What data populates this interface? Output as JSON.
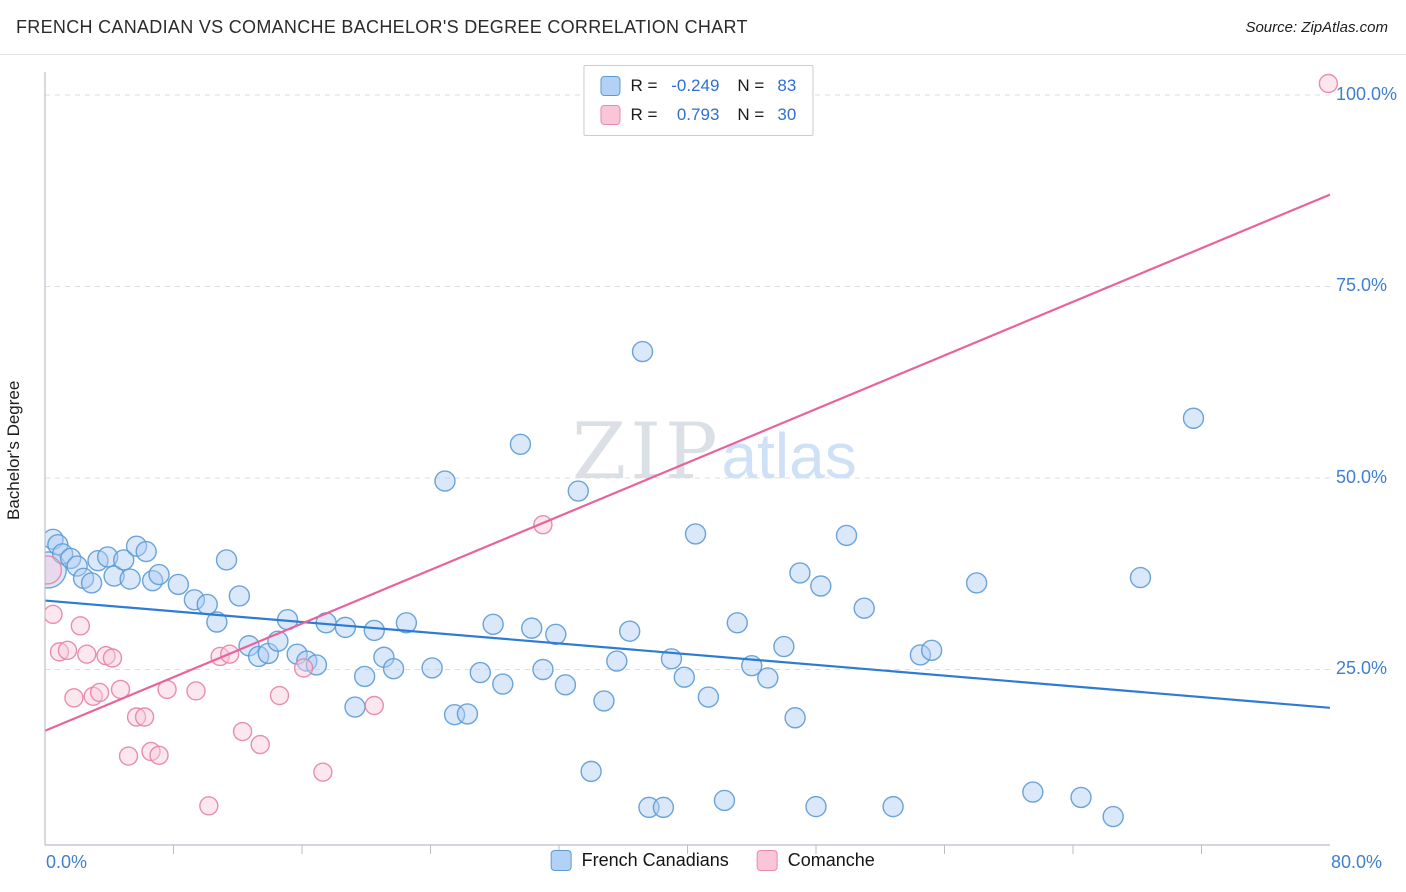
{
  "chart_data": {
    "type": "scatter",
    "title": "FRENCH CANADIAN VS COMANCHE BACHELOR'S DEGREE CORRELATION CHART",
    "source": "Source: ZipAtlas.com",
    "ylabel": "Bachelor's Degree",
    "watermark": {
      "zip": "ZIP",
      "atlas": "atlas"
    },
    "xlim": [
      0,
      80
    ],
    "ylim": [
      0,
      104
    ],
    "x_tick_labels": {
      "min": "0.0%",
      "max": "80.0%"
    },
    "y_gridlines": [
      25,
      50,
      75,
      100
    ],
    "y_tick_labels": [
      "25.0%",
      "50.0%",
      "75.0%",
      "100.0%"
    ],
    "grid": "dashed-horizontal",
    "legend_position": "top-center",
    "series": [
      {
        "name": "French Canadians",
        "R": -0.249,
        "N": 83,
        "fill": "#AECDF5",
        "stroke": "#5B9BD5",
        "line_color": "#2E7BD6",
        "radius": 10,
        "trend": {
          "x": [
            0,
            80
          ],
          "y": [
            34,
            20
          ]
        },
        "points": [
          [
            0.2,
            38,
            18
          ],
          [
            0.5,
            42
          ],
          [
            0.8,
            41.3
          ],
          [
            1.1,
            40.1
          ],
          [
            1.6,
            39.5
          ],
          [
            2,
            38.5
          ],
          [
            2.4,
            36.9
          ],
          [
            2.9,
            36.3
          ],
          [
            3.3,
            39.2
          ],
          [
            3.9,
            39.7
          ],
          [
            4.3,
            37.2
          ],
          [
            4.9,
            39.3
          ],
          [
            5.3,
            36.8
          ],
          [
            5.7,
            41.1
          ],
          [
            6.3,
            40.4
          ],
          [
            6.7,
            36.6
          ],
          [
            7.1,
            37.4
          ],
          [
            8.3,
            36.1
          ],
          [
            9.3,
            34.1
          ],
          [
            10.1,
            33.5
          ],
          [
            10.7,
            31.2
          ],
          [
            11.3,
            39.3
          ],
          [
            12.1,
            34.6
          ],
          [
            12.7,
            28.1
          ],
          [
            13.3,
            26.7
          ],
          [
            13.9,
            27.1
          ],
          [
            14.5,
            28.7
          ],
          [
            15.1,
            31.5
          ],
          [
            15.7,
            27
          ],
          [
            16.3,
            26.1
          ],
          [
            16.9,
            25.6
          ],
          [
            17.5,
            31.1
          ],
          [
            18.7,
            30.5
          ],
          [
            19.3,
            20.1
          ],
          [
            19.9,
            24.1
          ],
          [
            20.5,
            30.1
          ],
          [
            21.1,
            26.6
          ],
          [
            21.7,
            25.1
          ],
          [
            22.5,
            31.1
          ],
          [
            24.1,
            25.2
          ],
          [
            24.9,
            49.6
          ],
          [
            25.5,
            19.1
          ],
          [
            26.3,
            19.2
          ],
          [
            27.1,
            24.6
          ],
          [
            27.9,
            30.9
          ],
          [
            28.5,
            23.1
          ],
          [
            29.6,
            54.4
          ],
          [
            30.3,
            30.4
          ],
          [
            31,
            25
          ],
          [
            31.8,
            29.6
          ],
          [
            32.4,
            23
          ],
          [
            33.2,
            48.3
          ],
          [
            34,
            11.7
          ],
          [
            34.8,
            20.9
          ],
          [
            35.6,
            26.1
          ],
          [
            36.4,
            30
          ],
          [
            37.2,
            66.5
          ],
          [
            37.6,
            7
          ],
          [
            38.5,
            7
          ],
          [
            39,
            26.4
          ],
          [
            39.8,
            24
          ],
          [
            40.5,
            42.7
          ],
          [
            41.3,
            21.4
          ],
          [
            42.3,
            7.9
          ],
          [
            43.1,
            31.1
          ],
          [
            44,
            25.5
          ],
          [
            45,
            23.9
          ],
          [
            46,
            28
          ],
          [
            46.7,
            18.7
          ],
          [
            47,
            37.6
          ],
          [
            48,
            7.1
          ],
          [
            48.3,
            35.9
          ],
          [
            49.9,
            42.5
          ],
          [
            51,
            33
          ],
          [
            52.8,
            7.1
          ],
          [
            54.5,
            26.9
          ],
          [
            55.2,
            27.5
          ],
          [
            58,
            36.3
          ],
          [
            61.5,
            9
          ],
          [
            64.5,
            8.3
          ],
          [
            66.5,
            5.8
          ],
          [
            68.2,
            37
          ],
          [
            71.5,
            57.8
          ]
        ]
      },
      {
        "name": "Comanche",
        "R": 0.793,
        "N": 30,
        "fill": "#F9C9DB",
        "stroke": "#E583A4",
        "line_color": "#E8639B",
        "radius": 9,
        "trend": {
          "x": [
            0,
            80
          ],
          "y": [
            17,
            87
          ]
        },
        "points": [
          [
            0.15,
            38,
            14
          ],
          [
            0.5,
            32.2
          ],
          [
            0.9,
            27.3
          ],
          [
            1.4,
            27.5
          ],
          [
            1.8,
            21.3
          ],
          [
            2.2,
            30.7
          ],
          [
            2.6,
            27
          ],
          [
            3,
            21.5
          ],
          [
            3.4,
            22
          ],
          [
            3.8,
            26.8
          ],
          [
            4.2,
            26.5
          ],
          [
            4.7,
            22.4
          ],
          [
            5.2,
            13.7
          ],
          [
            5.7,
            18.8
          ],
          [
            6.2,
            18.8
          ],
          [
            6.6,
            14.3
          ],
          [
            7.1,
            13.8
          ],
          [
            7.6,
            22.4
          ],
          [
            9.4,
            22.2
          ],
          [
            10.2,
            7.2
          ],
          [
            10.9,
            26.7
          ],
          [
            11.5,
            27
          ],
          [
            12.3,
            16.9
          ],
          [
            13.4,
            15.2
          ],
          [
            14.6,
            21.6
          ],
          [
            16.1,
            25.2
          ],
          [
            17.3,
            11.6
          ],
          [
            20.5,
            20.3
          ],
          [
            31,
            43.9
          ],
          [
            79.9,
            101.5
          ]
        ]
      }
    ]
  },
  "legend_box": {
    "rows": [
      {
        "r_label": "R =",
        "r_value": "-0.249",
        "n_label": "N =",
        "n_value": "83"
      },
      {
        "r_label": "R =",
        "r_value": "0.793",
        "n_label": "N =",
        "n_value": "30"
      }
    ]
  },
  "bottom_legend": {
    "items": [
      {
        "label": "French Canadians"
      },
      {
        "label": "Comanche"
      }
    ]
  }
}
